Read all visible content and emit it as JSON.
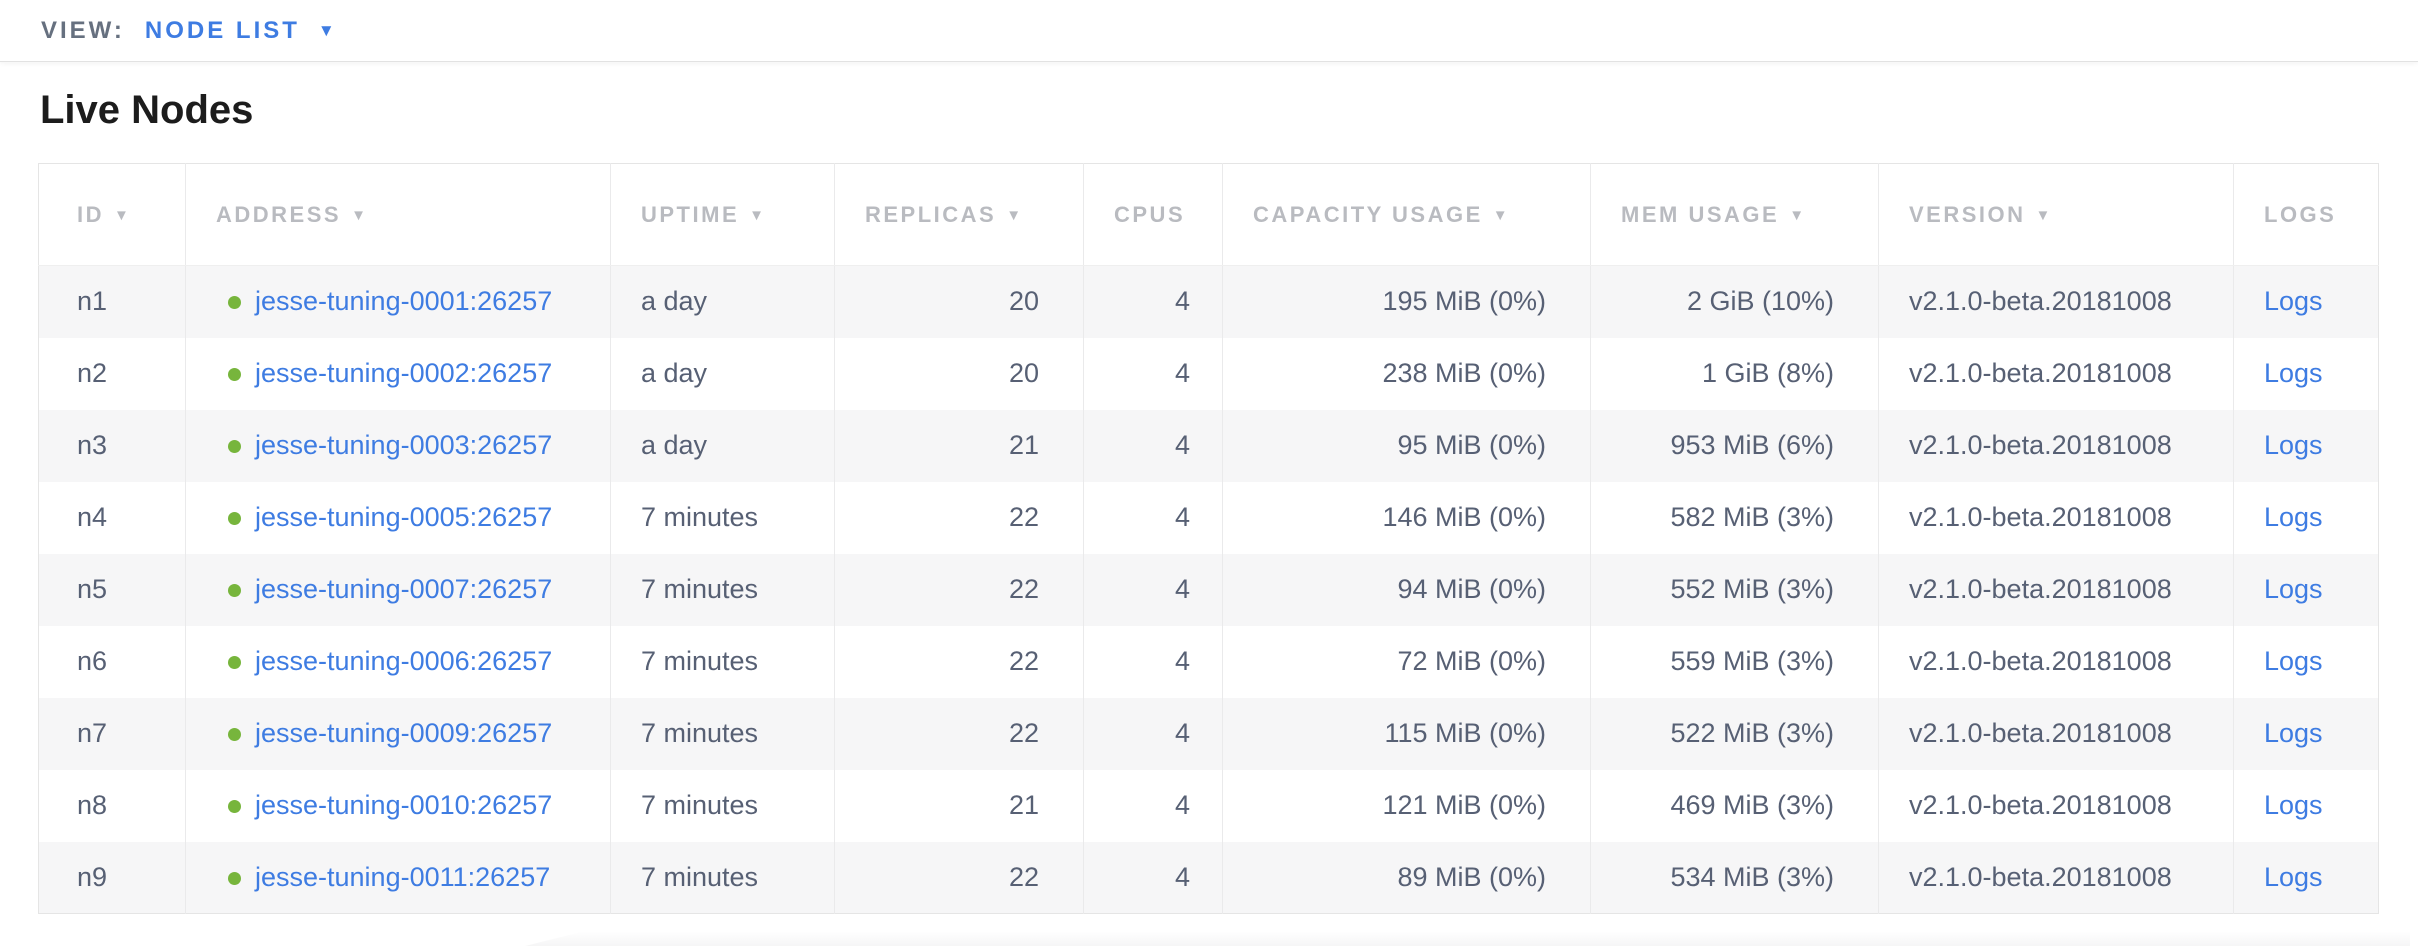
{
  "topbar": {
    "view_label": "VIEW:",
    "view_value": "NODE LIST"
  },
  "page": {
    "title": "Live Nodes"
  },
  "glyphs": {
    "sort_desc": "▼",
    "dropdown_caret": "▼"
  },
  "colors": {
    "accent_blue": "#3e7ce2",
    "healthy_green": "#77b53c",
    "header_gray": "#b9bbc0",
    "cell_text": "#576074",
    "row_alt_bg": "#f6f6f7"
  },
  "table": {
    "columns": [
      {
        "key": "id",
        "label": "ID",
        "sortable": true
      },
      {
        "key": "address",
        "label": "ADDRESS",
        "sortable": true
      },
      {
        "key": "uptime",
        "label": "UPTIME",
        "sortable": true
      },
      {
        "key": "replicas",
        "label": "REPLICAS",
        "sortable": true
      },
      {
        "key": "cpus",
        "label": "CPUS",
        "sortable": false
      },
      {
        "key": "capacity",
        "label": "CAPACITY USAGE",
        "sortable": true
      },
      {
        "key": "mem",
        "label": "MEM USAGE",
        "sortable": true
      },
      {
        "key": "version",
        "label": "VERSION",
        "sortable": true
      },
      {
        "key": "logs",
        "label": "LOGS",
        "sortable": false
      }
    ],
    "rows": [
      {
        "id": "n1",
        "status": "healthy",
        "address": "jesse-tuning-0001:26257",
        "uptime": "a day",
        "replicas": "20",
        "cpus": "4",
        "capacity": "195 MiB (0%)",
        "mem": "2 GiB (10%)",
        "version": "v2.1.0-beta.20181008",
        "logs": "Logs"
      },
      {
        "id": "n2",
        "status": "healthy",
        "address": "jesse-tuning-0002:26257",
        "uptime": "a day",
        "replicas": "20",
        "cpus": "4",
        "capacity": "238 MiB (0%)",
        "mem": "1 GiB (8%)",
        "version": "v2.1.0-beta.20181008",
        "logs": "Logs"
      },
      {
        "id": "n3",
        "status": "healthy",
        "address": "jesse-tuning-0003:26257",
        "uptime": "a day",
        "replicas": "21",
        "cpus": "4",
        "capacity": "95 MiB (0%)",
        "mem": "953 MiB (6%)",
        "version": "v2.1.0-beta.20181008",
        "logs": "Logs"
      },
      {
        "id": "n4",
        "status": "healthy",
        "address": "jesse-tuning-0005:26257",
        "uptime": "7 minutes",
        "replicas": "22",
        "cpus": "4",
        "capacity": "146 MiB (0%)",
        "mem": "582 MiB (3%)",
        "version": "v2.1.0-beta.20181008",
        "logs": "Logs"
      },
      {
        "id": "n5",
        "status": "healthy",
        "address": "jesse-tuning-0007:26257",
        "uptime": "7 minutes",
        "replicas": "22",
        "cpus": "4",
        "capacity": "94 MiB (0%)",
        "mem": "552 MiB (3%)",
        "version": "v2.1.0-beta.20181008",
        "logs": "Logs"
      },
      {
        "id": "n6",
        "status": "healthy",
        "address": "jesse-tuning-0006:26257",
        "uptime": "7 minutes",
        "replicas": "22",
        "cpus": "4",
        "capacity": "72 MiB (0%)",
        "mem": "559 MiB (3%)",
        "version": "v2.1.0-beta.20181008",
        "logs": "Logs"
      },
      {
        "id": "n7",
        "status": "healthy",
        "address": "jesse-tuning-0009:26257",
        "uptime": "7 minutes",
        "replicas": "22",
        "cpus": "4",
        "capacity": "115 MiB (0%)",
        "mem": "522 MiB (3%)",
        "version": "v2.1.0-beta.20181008",
        "logs": "Logs"
      },
      {
        "id": "n8",
        "status": "healthy",
        "address": "jesse-tuning-0010:26257",
        "uptime": "7 minutes",
        "replicas": "21",
        "cpus": "4",
        "capacity": "121 MiB (0%)",
        "mem": "469 MiB (3%)",
        "version": "v2.1.0-beta.20181008",
        "logs": "Logs"
      },
      {
        "id": "n9",
        "status": "healthy",
        "address": "jesse-tuning-0011:26257",
        "uptime": "7 minutes",
        "replicas": "22",
        "cpus": "4",
        "capacity": "89 MiB (0%)",
        "mem": "534 MiB (3%)",
        "version": "v2.1.0-beta.20181008",
        "logs": "Logs"
      }
    ]
  }
}
